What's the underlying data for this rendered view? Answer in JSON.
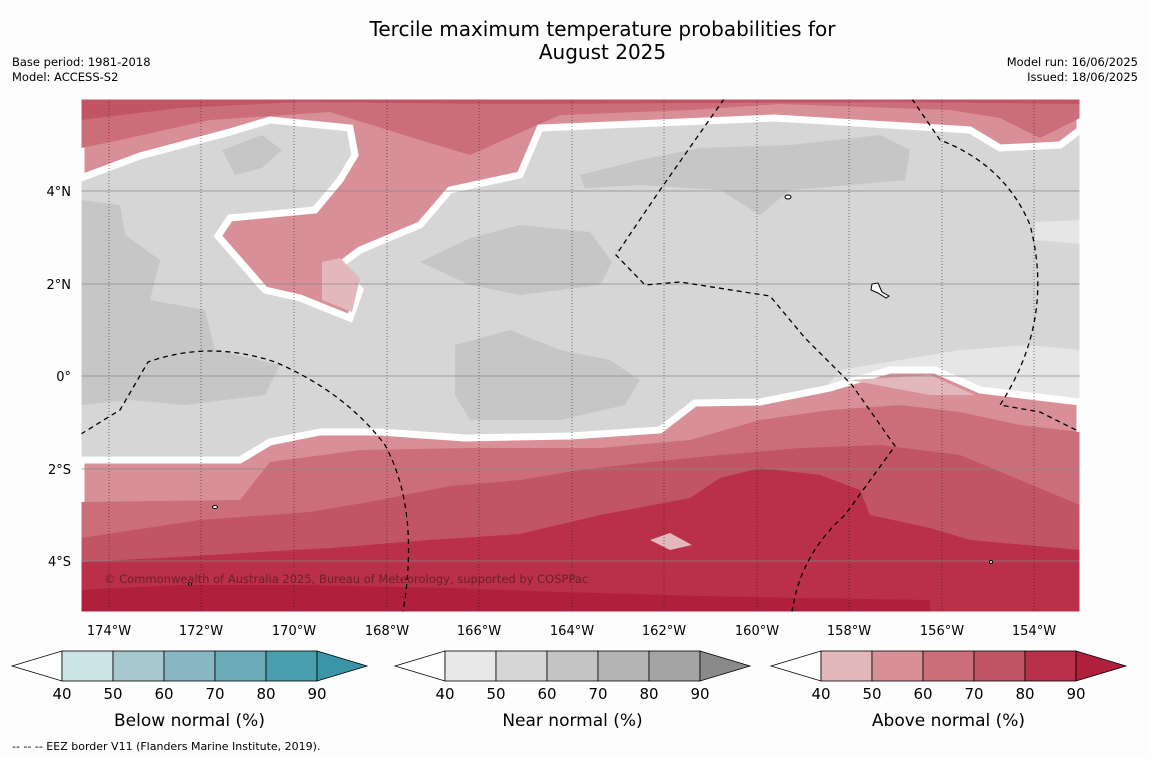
{
  "header": {
    "title_line1": "Tercile maximum temperature probabilities for",
    "title_line2": "August 2025",
    "base_period": "Base period: 1981-2018",
    "model": "Model: ACCESS-S2",
    "model_run": "Model run: 16/06/2025",
    "issued": "Issued: 18/06/2025"
  },
  "map": {
    "credit": "© Commonwealth of Australia 2025, Bureau of Meteorology, supported by COSPPac",
    "lon_labels": [
      "174°W",
      "172°W",
      "170°W",
      "168°W",
      "166°W",
      "164°W",
      "162°W",
      "160°W",
      "158°W",
      "156°W",
      "154°W"
    ],
    "lat_labels": [
      "4°N",
      "2°N",
      "0°",
      "2°S",
      "4°S"
    ]
  },
  "colorbars": [
    {
      "title": "Below normal (%)",
      "ticks": [
        "40",
        "50",
        "60",
        "70",
        "80",
        "90"
      ],
      "colors": [
        "#ffffff",
        "#cce3e8",
        "#a7c8ce",
        "#88b7c4",
        "#6aadb9",
        "#4a9fae",
        "#3a95a6"
      ]
    },
    {
      "title": "Near normal (%)",
      "ticks": [
        "40",
        "50",
        "60",
        "70",
        "80",
        "90"
      ],
      "colors": [
        "#ffffff",
        "#e8e8e8",
        "#d6d6d6",
        "#c4c4c4",
        "#b4b4b4",
        "#a4a4a4",
        "#8a8a8a"
      ]
    },
    {
      "title": "Above normal (%)",
      "ticks": [
        "40",
        "50",
        "60",
        "70",
        "80",
        "90"
      ],
      "colors": [
        "#ffffff",
        "#e2b8bd",
        "#d88f98",
        "#cc6e79",
        "#c25563",
        "#b93048",
        "#b01f3b"
      ]
    }
  ],
  "footnote": "--  --  -- EEZ border V11 (Flanders Marine Institute, 2019)."
}
